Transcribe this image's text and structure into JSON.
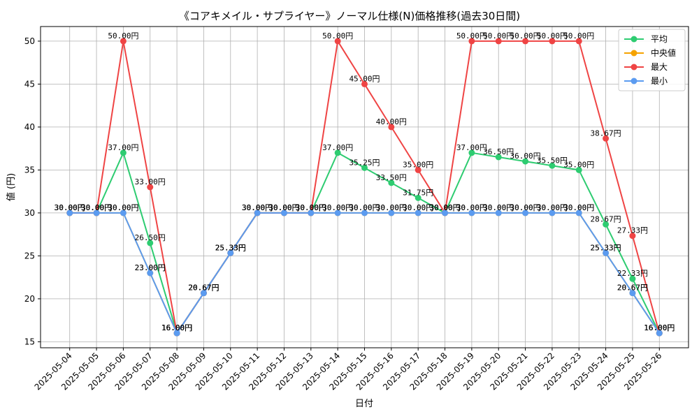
{
  "chart_data": {
    "type": "line",
    "title": "《コアキメイル・サプライヤー》ノーマル仕様(N)価格推移(過去30日間)",
    "xlabel": "日付",
    "ylabel": "値 (円)",
    "ylim": [
      14.3,
      51.7
    ],
    "yticks": [
      15,
      20,
      25,
      30,
      35,
      40,
      45,
      50
    ],
    "grid": true,
    "legend_position": "top-right",
    "label_suffix": "円",
    "categories": [
      "2025-05-04",
      "2025-05-05",
      "2025-05-06",
      "2025-05-07",
      "2025-05-08",
      "2025-05-09",
      "2025-05-10",
      "2025-05-11",
      "2025-05-12",
      "2025-05-13",
      "2025-05-14",
      "2025-05-15",
      "2025-05-16",
      "2025-05-17",
      "2025-05-18",
      "2025-05-19",
      "2025-05-20",
      "2025-05-21",
      "2025-05-22",
      "2025-05-23",
      "2025-05-24",
      "2025-05-25",
      "2025-05-26"
    ],
    "series": [
      {
        "name": "平均",
        "color": "#2ecc71",
        "values": [
          30,
          30,
          37,
          26.5,
          16,
          20.67,
          25.33,
          30,
          30,
          30,
          37,
          35.25,
          33.5,
          31.75,
          30,
          37,
          36.5,
          36,
          35.5,
          35,
          28.67,
          22.33,
          16
        ]
      },
      {
        "name": "中央値",
        "color": "#f5a300",
        "values": [
          30,
          30,
          30,
          23,
          16,
          20.67,
          25.33,
          30,
          30,
          30,
          30,
          30,
          30,
          30,
          30,
          30,
          30,
          30,
          30,
          30,
          25.33,
          20.67,
          16
        ]
      },
      {
        "name": "最大",
        "color": "#ef4444",
        "values": [
          30,
          30,
          50,
          33,
          16,
          20.67,
          25.33,
          30,
          30,
          30,
          50,
          45,
          40,
          35,
          30,
          50,
          50,
          50,
          50,
          50,
          38.67,
          27.33,
          16
        ]
      },
      {
        "name": "最小",
        "color": "#5b9bf0",
        "values": [
          30,
          30,
          30,
          23,
          16,
          20.67,
          25.33,
          30,
          30,
          30,
          30,
          30,
          30,
          30,
          30,
          30,
          30,
          30,
          30,
          30,
          25.33,
          20.67,
          16
        ]
      }
    ]
  }
}
